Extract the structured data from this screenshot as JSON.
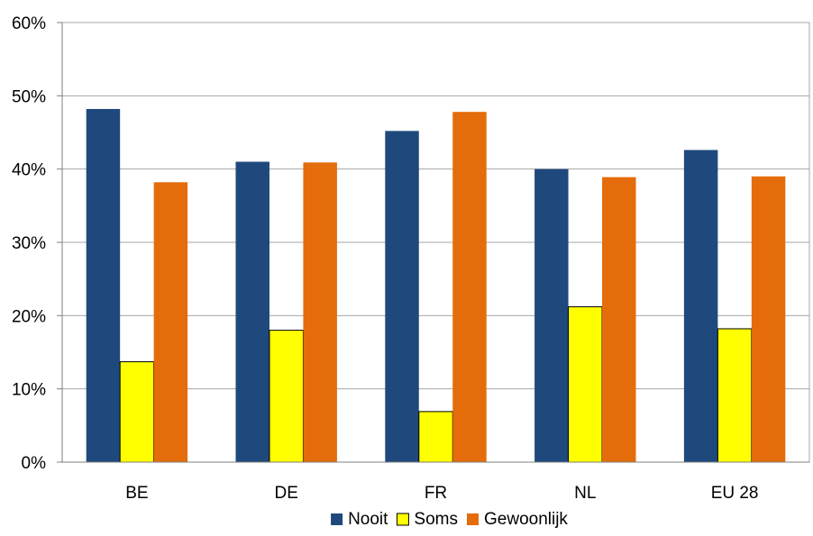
{
  "chart_data": {
    "type": "bar",
    "title": "",
    "xlabel": "",
    "ylabel": "",
    "categories": [
      "BE",
      "DE",
      "FR",
      "NL",
      "EU 28"
    ],
    "series": [
      {
        "name": "Nooit",
        "color": "#1F497D",
        "values": [
          48.2,
          41.0,
          45.2,
          40.0,
          42.6
        ]
      },
      {
        "name": "Soms",
        "color": "#FFFF00",
        "values": [
          13.7,
          18.0,
          6.9,
          21.2,
          18.2
        ]
      },
      {
        "name": "Gewoonlijk",
        "color": "#E46C0A",
        "values": [
          38.2,
          40.9,
          47.8,
          38.9,
          39.0
        ]
      }
    ],
    "ylim": [
      0,
      60
    ],
    "yticks": [
      0,
      10,
      20,
      30,
      40,
      50,
      60
    ],
    "ytick_labels": [
      "0%",
      "10%",
      "20%",
      "30%",
      "40%",
      "50%",
      "60%"
    ],
    "grid": true,
    "legend_position": "bottom"
  }
}
